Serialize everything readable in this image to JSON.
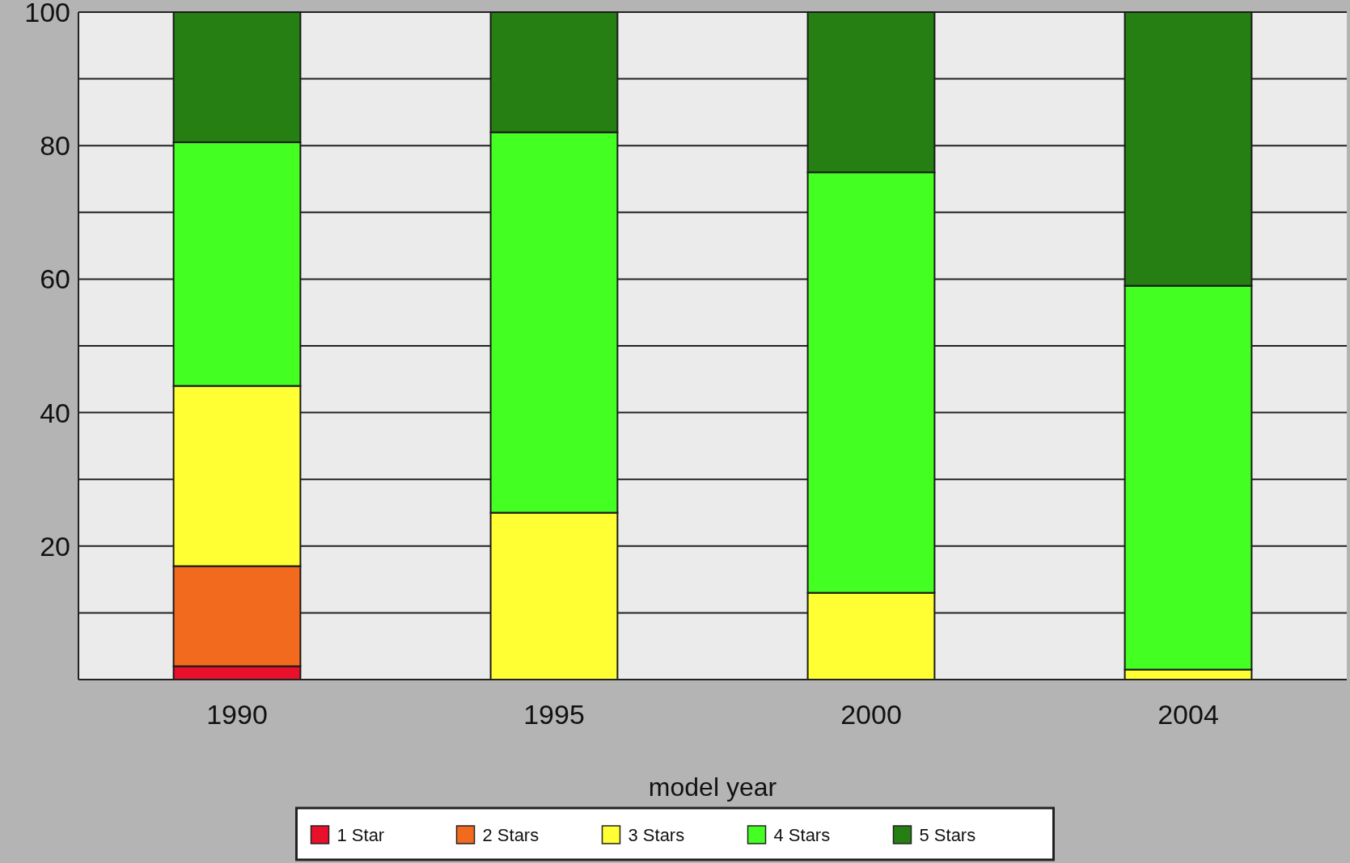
{
  "chart_data": {
    "type": "bar",
    "stacked": true,
    "xlabel": "model year",
    "categories": [
      "1990",
      "1995",
      "2000",
      "2004"
    ],
    "series": [
      {
        "name": "1 Star",
        "color": "#e8102a",
        "values": [
          2,
          0,
          0,
          0
        ]
      },
      {
        "name": "2 Stars",
        "color": "#f26a1e",
        "values": [
          15,
          0,
          0,
          0
        ]
      },
      {
        "name": "3 Stars",
        "color": "#ffff33",
        "values": [
          27,
          25,
          13,
          1.5
        ]
      },
      {
        "name": "4 Stars",
        "color": "#44ff22",
        "values": [
          36.5,
          57,
          63,
          57.5
        ]
      },
      {
        "name": "5 Stars",
        "color": "#267f12",
        "values": [
          19.5,
          18,
          24,
          41
        ]
      }
    ],
    "ylim": [
      0,
      100
    ],
    "yticks": [
      {
        "value": 10,
        "label": null
      },
      20,
      {
        "value": 30,
        "label": null
      },
      40,
      {
        "value": 50,
        "label": null
      },
      60,
      {
        "value": 70,
        "label": null
      },
      80,
      {
        "value": 90,
        "label": null
      },
      100
    ],
    "grid": "y",
    "legend": "bottom"
  }
}
